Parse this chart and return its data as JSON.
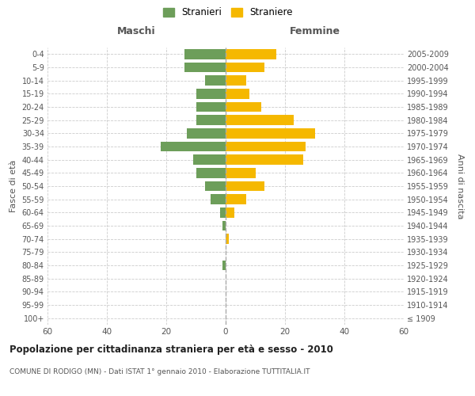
{
  "age_groups": [
    "100+",
    "95-99",
    "90-94",
    "85-89",
    "80-84",
    "75-79",
    "70-74",
    "65-69",
    "60-64",
    "55-59",
    "50-54",
    "45-49",
    "40-44",
    "35-39",
    "30-34",
    "25-29",
    "20-24",
    "15-19",
    "10-14",
    "5-9",
    "0-4"
  ],
  "birth_years": [
    "≤ 1909",
    "1910-1914",
    "1915-1919",
    "1920-1924",
    "1925-1929",
    "1930-1934",
    "1935-1939",
    "1940-1944",
    "1945-1949",
    "1950-1954",
    "1955-1959",
    "1960-1964",
    "1965-1969",
    "1970-1974",
    "1975-1979",
    "1980-1984",
    "1985-1989",
    "1990-1994",
    "1995-1999",
    "2000-2004",
    "2005-2009"
  ],
  "maschi": [
    0,
    0,
    0,
    0,
    1,
    0,
    0,
    1,
    2,
    5,
    7,
    10,
    11,
    22,
    13,
    10,
    10,
    10,
    7,
    14,
    14
  ],
  "femmine": [
    0,
    0,
    0,
    0,
    0,
    0,
    1,
    0,
    3,
    7,
    13,
    10,
    26,
    27,
    30,
    23,
    12,
    8,
    7,
    13,
    17
  ],
  "color_maschi": "#6d9e5a",
  "color_femmine": "#f5b800",
  "title": "Popolazione per cittadinanza straniera per età e sesso - 2010",
  "subtitle": "COMUNE DI RODIGO (MN) - Dati ISTAT 1° gennaio 2010 - Elaborazione TUTTITALIA.IT",
  "xlabel_left": "Maschi",
  "xlabel_right": "Femmine",
  "ylabel_left": "Fasce di età",
  "ylabel_right": "Anni di nascita",
  "legend_maschi": "Stranieri",
  "legend_femmine": "Straniere",
  "xlim": 60,
  "background_color": "#ffffff",
  "grid_color": "#cccccc"
}
